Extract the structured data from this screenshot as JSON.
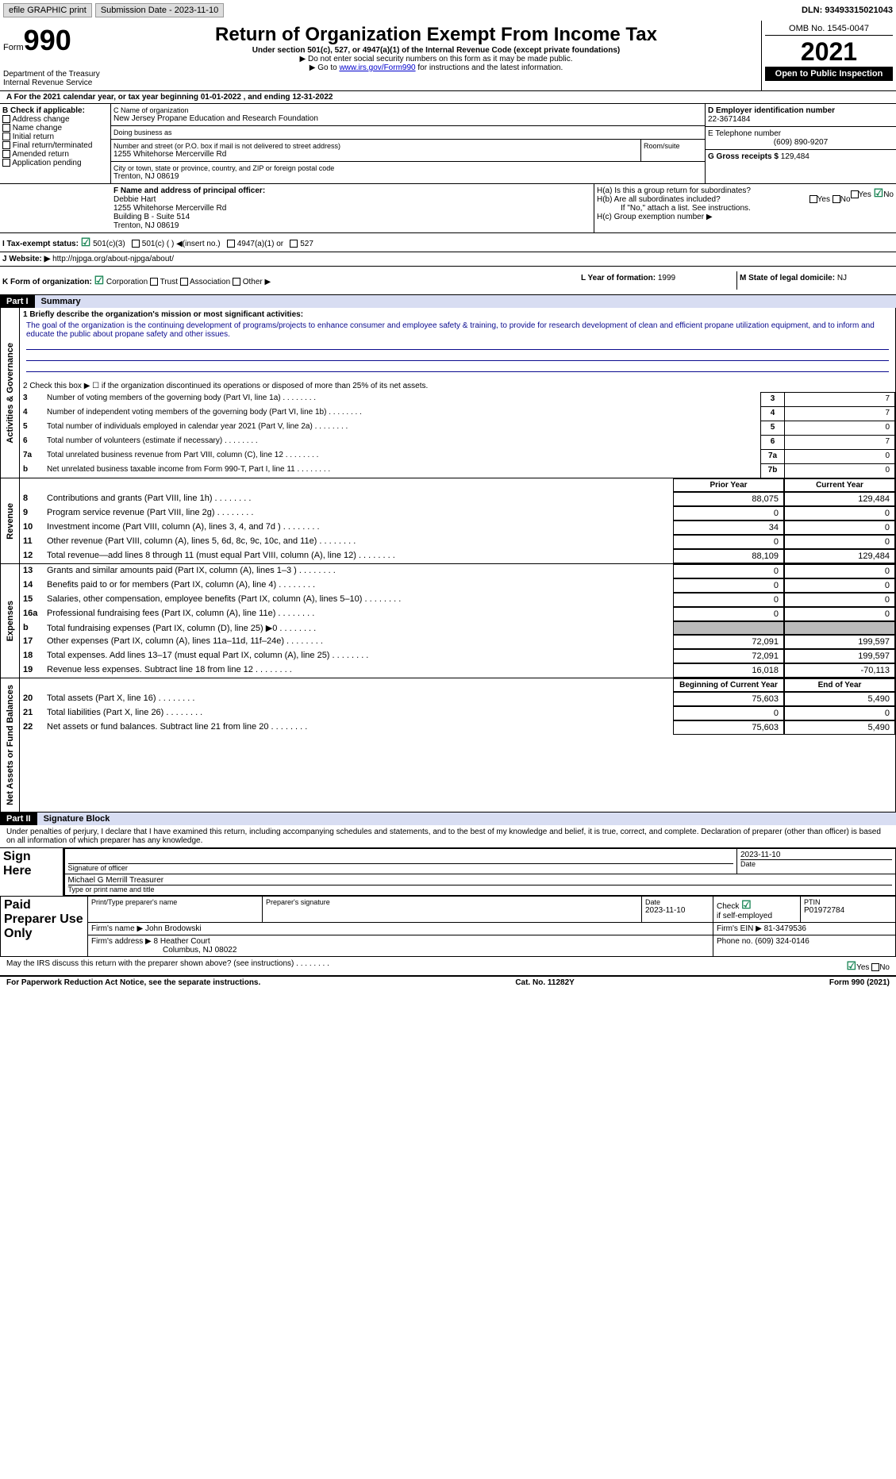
{
  "top": {
    "efile_label": "efile GRAPHIC print",
    "submission": "Submission Date - 2023-11-10",
    "dln_label": "DLN: 93493315021043"
  },
  "header": {
    "form_label": "Form",
    "form_num": "990",
    "dept": "Department of the Treasury",
    "irs": "Internal Revenue Service",
    "title": "Return of Organization Exempt From Income Tax",
    "subtitle": "Under section 501(c), 527, or 4947(a)(1) of the Internal Revenue Code (except private foundations)",
    "note1": "▶ Do not enter social security numbers on this form as it may be made public.",
    "note2_pre": "▶ Go to ",
    "note2_link": "www.irs.gov/Form990",
    "note2_post": " for instructions and the latest information.",
    "omb": "OMB No. 1545-0047",
    "year": "2021",
    "open_public": "Open to Public Inspection"
  },
  "A": {
    "text": "A For the 2021 calendar year, or tax year beginning 01-01-2022     , and ending 12-31-2022"
  },
  "B": {
    "label": "B Check if applicable:",
    "opts": [
      "Address change",
      "Name change",
      "Initial return",
      "Final return/terminated",
      "Amended return",
      "Application pending"
    ]
  },
  "C": {
    "name_label": "C Name of organization",
    "name": "New Jersey Propane Education and Research Foundation",
    "dba_label": "Doing business as",
    "addr_label": "Number and street (or P.O. box if mail is not delivered to street address)",
    "addr": "1255 Whitehorse Mercerville Rd",
    "room_label": "Room/suite",
    "city_label": "City or town, state or province, country, and ZIP or foreign postal code",
    "city": "Trenton, NJ  08619"
  },
  "D": {
    "label": "D Employer identification number",
    "val": "22-3671484"
  },
  "E": {
    "label": "E Telephone number",
    "val": "(609) 890-9207"
  },
  "G": {
    "label": "G Gross receipts $",
    "val": "129,484"
  },
  "F": {
    "label": "F  Name and address of principal officer:",
    "name": "Debbie Hart",
    "addr1": "1255 Whitehorse Mercerville Rd",
    "addr2": "Building B - Suite 514",
    "addr3": "Trenton, NJ  08619"
  },
  "H": {
    "a": "H(a)  Is this a group return for subordinates?",
    "b": "H(b)  Are all subordinates included?",
    "b_note": "If \"No,\" attach a list. See instructions.",
    "c": "H(c)  Group exemption number ▶",
    "yes": "Yes",
    "no": "No"
  },
  "I": {
    "label": "I    Tax-exempt status:",
    "o1": "501(c)(3)",
    "o2": "501(c) (  ) ◀(insert no.)",
    "o3": "4947(a)(1) or",
    "o4": "527"
  },
  "J": {
    "label": "J   Website: ▶",
    "val": "http://njpga.org/about-njpga/about/"
  },
  "K": {
    "label": "K Form of organization:",
    "opts": [
      "Corporation",
      "Trust",
      "Association",
      "Other ▶"
    ]
  },
  "L": {
    "label": "L Year of formation: ",
    "val": "1999"
  },
  "M": {
    "label": "M State of legal domicile: ",
    "val": "NJ"
  },
  "part1": {
    "header": "Part I",
    "title": "Summary",
    "q1_label": "1  Briefly describe the organization's mission or most significant activities:",
    "mission": "The goal of the organization is the continuing development of programs/projects to enhance consumer and employee safety & training, to provide for research development of clean and efficient propane utilization equipment, and to inform and educate the public about propane safety and other issues.",
    "q2": "2   Check this box ▶ ☐  if the organization discontinued its operations or disposed of more than 25% of its net assets.",
    "rows_single": [
      {
        "n": "3",
        "label": "Number of voting members of the governing body (Part VI, line 1a)",
        "box": "3",
        "val": "7"
      },
      {
        "n": "4",
        "label": "Number of independent voting members of the governing body (Part VI, line 1b)",
        "box": "4",
        "val": "7"
      },
      {
        "n": "5",
        "label": "Total number of individuals employed in calendar year 2021 (Part V, line 2a)",
        "box": "5",
        "val": "0"
      },
      {
        "n": "6",
        "label": "Total number of volunteers (estimate if necessary)",
        "box": "6",
        "val": "7"
      },
      {
        "n": "7a",
        "label": "Total unrelated business revenue from Part VIII, column (C), line 12",
        "box": "7a",
        "val": "0"
      },
      {
        "n": "b",
        "label": "Net unrelated business taxable income from Form 990-T, Part I, line 11",
        "box": "7b",
        "val": "0"
      }
    ],
    "prior_label": "Prior Year",
    "current_label": "Current Year",
    "revenue": [
      {
        "n": "8",
        "label": "Contributions and grants (Part VIII, line 1h)",
        "prior": "88,075",
        "curr": "129,484"
      },
      {
        "n": "9",
        "label": "Program service revenue (Part VIII, line 2g)",
        "prior": "0",
        "curr": "0"
      },
      {
        "n": "10",
        "label": "Investment income (Part VIII, column (A), lines 3, 4, and 7d )",
        "prior": "34",
        "curr": "0"
      },
      {
        "n": "11",
        "label": "Other revenue (Part VIII, column (A), lines 5, 6d, 8c, 9c, 10c, and 11e)",
        "prior": "0",
        "curr": "0"
      },
      {
        "n": "12",
        "label": "Total revenue—add lines 8 through 11 (must equal Part VIII, column (A), line 12)",
        "prior": "88,109",
        "curr": "129,484"
      }
    ],
    "expenses": [
      {
        "n": "13",
        "label": "Grants and similar amounts paid (Part IX, column (A), lines 1–3 )",
        "prior": "0",
        "curr": "0"
      },
      {
        "n": "14",
        "label": "Benefits paid to or for members (Part IX, column (A), line 4)",
        "prior": "0",
        "curr": "0"
      },
      {
        "n": "15",
        "label": "Salaries, other compensation, employee benefits (Part IX, column (A), lines 5–10)",
        "prior": "0",
        "curr": "0"
      },
      {
        "n": "16a",
        "label": "Professional fundraising fees (Part IX, column (A), line 11e)",
        "prior": "0",
        "curr": "0"
      },
      {
        "n": "b",
        "label": "Total fundraising expenses (Part IX, column (D), line 25) ▶0",
        "prior": "",
        "curr": "",
        "grey": true
      },
      {
        "n": "17",
        "label": "Other expenses (Part IX, column (A), lines 11a–11d, 11f–24e)",
        "prior": "72,091",
        "curr": "199,597"
      },
      {
        "n": "18",
        "label": "Total expenses. Add lines 13–17 (must equal Part IX, column (A), line 25)",
        "prior": "72,091",
        "curr": "199,597"
      },
      {
        "n": "19",
        "label": "Revenue less expenses. Subtract line 18 from line 12",
        "prior": "16,018",
        "curr": "-70,113"
      }
    ],
    "begin_label": "Beginning of Current Year",
    "end_label": "End of Year",
    "assets": [
      {
        "n": "20",
        "label": "Total assets (Part X, line 16)",
        "prior": "75,603",
        "curr": "5,490"
      },
      {
        "n": "21",
        "label": "Total liabilities (Part X, line 26)",
        "prior": "0",
        "curr": "0"
      },
      {
        "n": "22",
        "label": "Net assets or fund balances. Subtract line 21 from line 20",
        "prior": "75,603",
        "curr": "5,490"
      }
    ],
    "vert_gov": "Activities & Governance",
    "vert_rev": "Revenue",
    "vert_exp": "Expenses",
    "vert_net": "Net Assets or Fund Balances"
  },
  "part2": {
    "header": "Part II",
    "title": "Signature Block",
    "decl": "Under penalties of perjury, I declare that I have examined this return, including accompanying schedules and statements, and to the best of my knowledge and belief, it is true, correct, and complete. Declaration of preparer (other than officer) is based on all information of which preparer has any knowledge.",
    "sign_here": "Sign Here",
    "sig_off_label": "Signature of officer",
    "date": "Date",
    "date_val": "2023-11-10",
    "officer_name": "Michael G Merrill  Treasurer",
    "type_name_label": "Type or print name and title",
    "paid_prep": "Paid Preparer Use Only",
    "prep_name_label": "Print/Type preparer's name",
    "prep_sig_label": "Preparer's signature",
    "check_label": "Check",
    "self_emp": "if self-employed",
    "ptin_label": "PTIN",
    "ptin": "P01972784",
    "firm_name_label": "Firm's name    ▶",
    "firm_name": "John Brodowski",
    "firm_ein_label": "Firm's EIN ▶",
    "firm_ein": "81-3479536",
    "firm_addr_label": "Firm's address ▶",
    "firm_addr": "8 Heather Court",
    "firm_city": "Columbus, NJ  08022",
    "phone_label": "Phone no.",
    "phone": "(609) 324-0146",
    "may_irs": "May the IRS discuss this return with the preparer shown above? (see instructions)"
  },
  "footer": {
    "left": "For Paperwork Reduction Act Notice, see the separate instructions.",
    "mid": "Cat. No. 11282Y",
    "right": "Form 990 (2021)"
  }
}
